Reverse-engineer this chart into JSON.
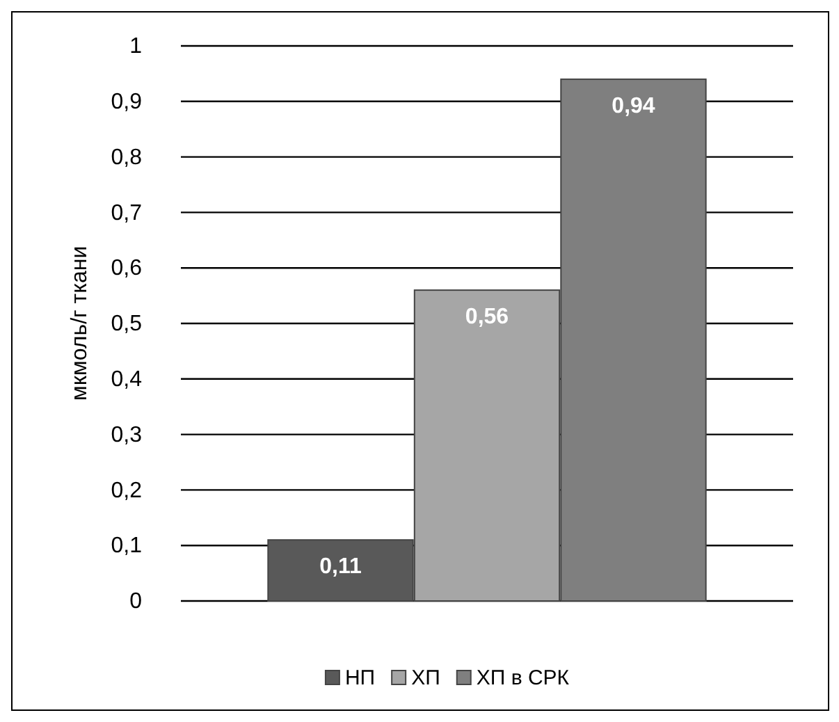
{
  "chart_data": {
    "type": "bar",
    "ylabel": "мкмоль/г ткани",
    "categories": [
      null
    ],
    "series": [
      {
        "name": "НП",
        "color": "#595959",
        "values": [
          0.11
        ],
        "value_labels": [
          "0,11"
        ]
      },
      {
        "name": "ХП",
        "color": "#a6a6a6",
        "values": [
          0.56
        ],
        "value_labels": [
          "0,56"
        ]
      },
      {
        "name": "ХП в СРК",
        "color": "#7f7f7f",
        "values": [
          0.94
        ],
        "value_labels": [
          "0,94"
        ]
      }
    ],
    "ylim": [
      0,
      1
    ],
    "yticks": [
      0,
      {
        "value": 0.1,
        "label": "0,1"
      },
      {
        "value": 0.2,
        "label": "0,2"
      },
      {
        "value": 0.3,
        "label": "0,3"
      },
      {
        "value": 0.4,
        "label": "0,4"
      },
      {
        "value": 0.5,
        "label": "0,5"
      },
      {
        "value": 0.6,
        "label": "0,6"
      },
      {
        "value": 0.7,
        "label": "0,7"
      },
      {
        "value": 0.8,
        "label": "0,8"
      },
      {
        "value": 0.9,
        "label": "0,9"
      },
      1
    ],
    "grid": "y",
    "legend": "bottom"
  }
}
